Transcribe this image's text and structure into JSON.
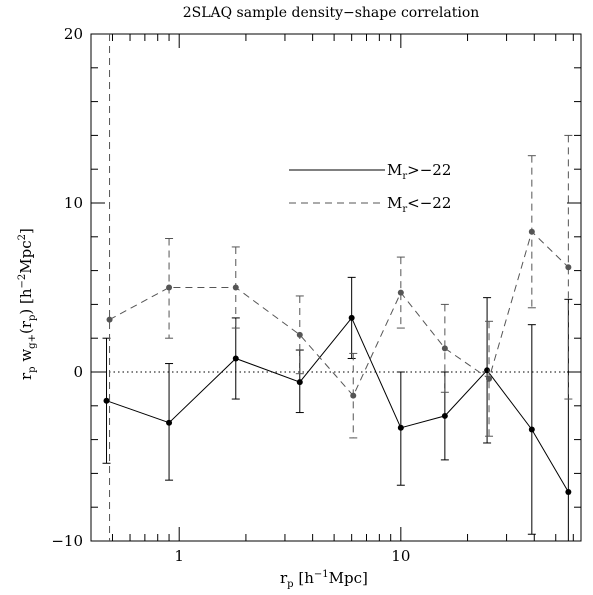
{
  "chart_data": {
    "type": "line",
    "title": "2SLAQ sample density−shape correlation",
    "xlabel": {
      "main": "r",
      "sub": "p",
      "rest": " [h",
      "sup": "−1",
      "end": "Mpc]"
    },
    "ylabel": {
      "a": "r",
      "a_sub": "p",
      "b": " w",
      "b_sub": "g+",
      "c": "(r",
      "c_sub": "p",
      "d": ") [h",
      "d_sup": "−2",
      "e": "Mpc",
      "e_sup": "2",
      "f": "]"
    },
    "x_scale": "log",
    "xlim": [
      0.4,
      65
    ],
    "ylim": [
      -10,
      20
    ],
    "x_major_ticks": [
      1,
      10
    ],
    "x_tick_labels": [
      "1",
      "10"
    ],
    "y_major_ticks": [
      -10,
      0,
      10,
      20
    ],
    "y_tick_labels": [
      "−10",
      "0",
      "10",
      "20"
    ],
    "zero_line": {
      "y": 0,
      "style": "dotted"
    },
    "legend_position": "upper-middle",
    "series": [
      {
        "name": "M_r > −22",
        "legend": {
          "main": "M",
          "sub": "r",
          "rest": ">−22"
        },
        "color": "#000000",
        "dash": "solid",
        "x": [
          0.47,
          0.9,
          1.8,
          3.5,
          6.0,
          10.0,
          15.8,
          24.5,
          39.0,
          57.0
        ],
        "y": [
          -1.7,
          -3.0,
          0.8,
          -0.6,
          3.2,
          -3.3,
          -2.6,
          0.1,
          -3.4,
          -7.1
        ],
        "err_lo": [
          3.7,
          3.4,
          2.4,
          1.8,
          2.4,
          3.4,
          2.6,
          4.3,
          6.2,
          3.4
        ],
        "err_hi": [
          3.7,
          3.5,
          2.4,
          1.9,
          2.4,
          3.3,
          2.6,
          4.3,
          6.2,
          11.4
        ]
      },
      {
        "name": "M_r < −22",
        "legend": {
          "main": "M",
          "sub": "r",
          "rest": "<−22"
        },
        "color": "#555555",
        "dash": "dashed",
        "x": [
          0.485,
          0.9,
          1.8,
          3.5,
          6.1,
          10.0,
          15.8,
          25.0,
          39.0,
          57.0
        ],
        "y": [
          3.1,
          5.0,
          5.0,
          2.2,
          -1.4,
          4.7,
          1.4,
          -0.4,
          8.3,
          6.2
        ],
        "err_lo": [
          14.0,
          3.0,
          2.4,
          2.3,
          2.5,
          2.1,
          2.6,
          3.4,
          4.5,
          7.8
        ],
        "err_hi": [
          17.0,
          2.9,
          2.4,
          2.3,
          2.5,
          2.1,
          2.6,
          3.4,
          4.5,
          7.8
        ]
      }
    ]
  }
}
